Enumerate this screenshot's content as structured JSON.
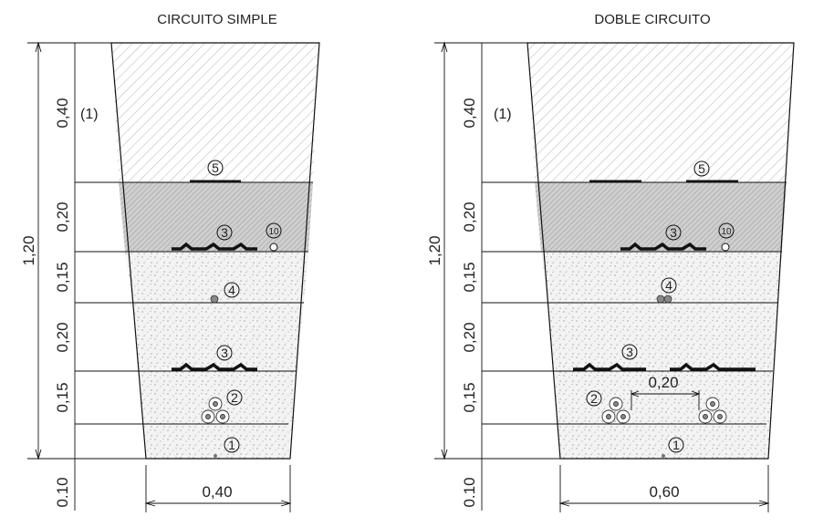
{
  "panels": [
    {
      "title": "CIRCUITO SIMPLE",
      "total_height_label": "1,20",
      "note": "(1)",
      "layer_labels": [
        "0,40",
        "0,20",
        "0,15",
        "0,20",
        "0,15"
      ],
      "bottom_label": "0.10",
      "width_label": "0,40",
      "callouts": [
        "5",
        "3",
        "10",
        "4",
        "3",
        "2",
        "1"
      ]
    },
    {
      "title": "DOBLE CIRCUITO",
      "total_height_label": "1,20",
      "note": "(1)",
      "layer_labels": [
        "0,40",
        "0,20",
        "0,15",
        "0,20",
        "0,15"
      ],
      "bottom_label": "0.10",
      "width_label": "0,60",
      "spacing_label": "0,20",
      "callouts": [
        "5",
        "3",
        "10",
        "4",
        "3",
        "2",
        "1"
      ]
    }
  ],
  "colors": {
    "line": "#111111",
    "hatch": "#9a9a9a",
    "sand_bg": "#f4f4f4",
    "concrete_bg": "#d8d8d8",
    "tube": "#888888"
  }
}
